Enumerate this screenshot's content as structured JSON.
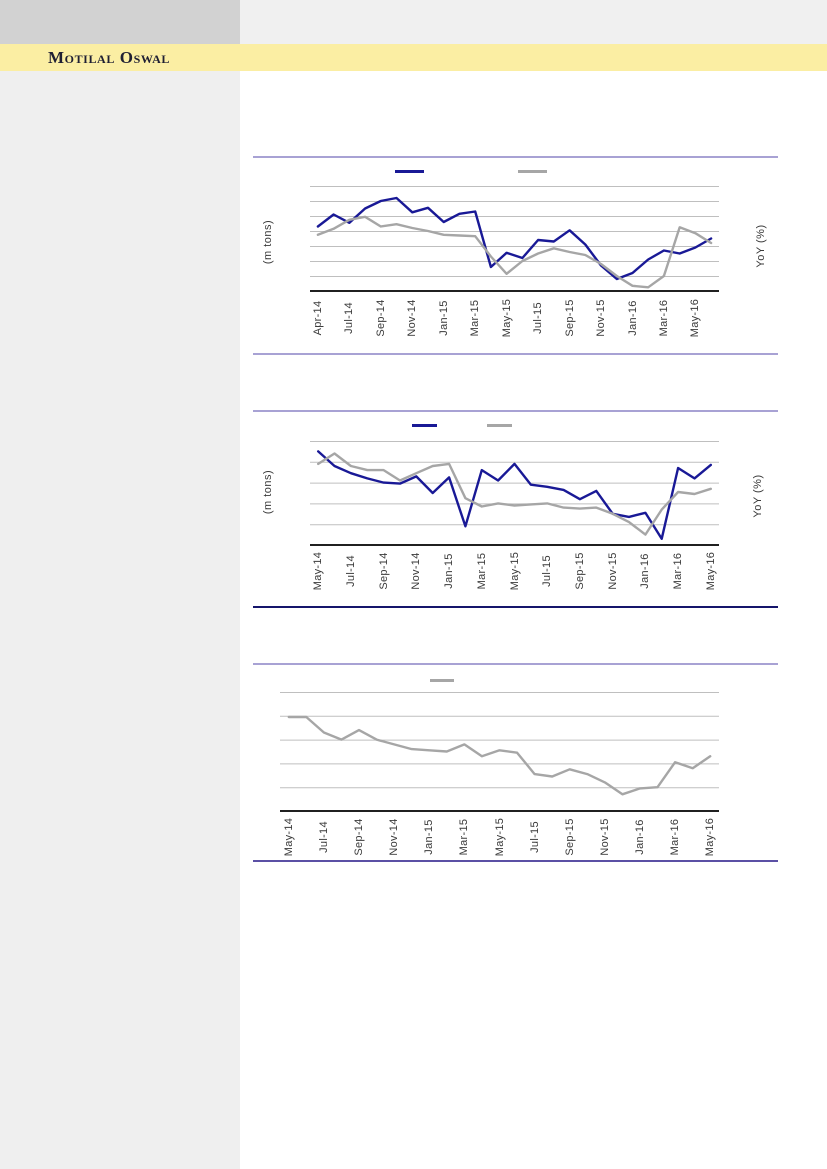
{
  "page": {
    "brand": "Motilal Oswal"
  },
  "colors": {
    "band_yellow": "#FBEEA3",
    "sidebar_gray": "#EFEFEF",
    "sidebar_top_gray": "#D2D2D2",
    "header_strip_gray": "#F0F0F0",
    "brand_text": "#1F1F33",
    "navy_line": "#191996",
    "gray_line": "#A6A6A6",
    "gridline": "#BFBFBF",
    "axis_text": "#3A3A3A",
    "rule_light": "#A8A2D4",
    "rule_navy": "#15156B",
    "rule_purple": "#5B50A5"
  },
  "chart_data": [
    {
      "type": "line",
      "ylabel_left": "(m tons)",
      "ylabel_right": "YoY (%)",
      "y_axis_numeric_labels": "none visible",
      "value_units": "relative gridline units (0 = x-axis, 7 = top gridline)",
      "ylim": [
        0,
        7
      ],
      "grid": "horizontal gridlines on, 7 intervals, black x-axis",
      "legend_position": "top (two unlabeled color swatches)",
      "x_tick_labels": [
        "Apr-14",
        "Jul-14",
        "Sep-14",
        "Nov-14",
        "Jan-15",
        "Mar-15",
        "May-15",
        "Jul-15",
        "Sep-15",
        "Nov-15",
        "Jan-16",
        "Mar-16",
        "May-16"
      ],
      "x": [
        "Apr-14",
        "May-14",
        "Jun-14",
        "Jul-14",
        "Aug-14",
        "Sep-14",
        "Oct-14",
        "Nov-14",
        "Dec-14",
        "Jan-15",
        "Feb-15",
        "Mar-15",
        "Apr-15",
        "May-15",
        "Jun-15",
        "Jul-15",
        "Aug-15",
        "Sep-15",
        "Oct-15",
        "Nov-15",
        "Dec-15",
        "Jan-16",
        "Feb-16",
        "Mar-16",
        "Apr-16",
        "May-16"
      ],
      "series": [
        {
          "name": "(m tons) navy line",
          "color": "#191996",
          "values": [
            4.3,
            5.1,
            4.55,
            5.5,
            6.0,
            6.2,
            5.25,
            5.55,
            4.6,
            5.15,
            5.3,
            1.6,
            2.55,
            2.2,
            3.4,
            3.3,
            4.05,
            3.1,
            1.7,
            0.8,
            1.2,
            2.1,
            2.7,
            2.5,
            2.9,
            3.5
          ]
        },
        {
          "name": "YoY (%) gray line",
          "color": "#A6A6A6",
          "values": [
            3.75,
            4.15,
            4.75,
            4.95,
            4.3,
            4.45,
            4.2,
            4.0,
            3.75,
            3.7,
            3.65,
            2.3,
            1.15,
            2.0,
            2.5,
            2.85,
            2.6,
            2.4,
            1.8,
            1.0,
            0.35,
            0.25,
            1.0,
            4.25,
            3.85,
            3.2
          ]
        }
      ]
    },
    {
      "type": "line",
      "ylabel_left": "(m tons)",
      "ylabel_right": "YoY (%)",
      "y_axis_numeric_labels": "none visible",
      "value_units": "relative gridline units (0 = x-axis, 5 = top gridline)",
      "ylim": [
        0,
        5
      ],
      "grid": "horizontal gridlines on, 5 intervals, black x-axis",
      "legend_position": "top (two unlabeled color swatches)",
      "x_tick_labels": [
        "May-14",
        "Jul-14",
        "Sep-14",
        "Nov-14",
        "Jan-15",
        "Mar-15",
        "May-15",
        "Jul-15",
        "Sep-15",
        "Nov-15",
        "Jan-16",
        "Mar-16",
        "May-16"
      ],
      "x": [
        "May-14",
        "Jun-14",
        "Jul-14",
        "Aug-14",
        "Sep-14",
        "Oct-14",
        "Nov-14",
        "Dec-14",
        "Jan-15",
        "Feb-15",
        "Mar-15",
        "Apr-15",
        "May-15",
        "Jun-15",
        "Jul-15",
        "Aug-15",
        "Sep-15",
        "Oct-15",
        "Nov-15",
        "Dec-15",
        "Jan-16",
        "Feb-16",
        "Mar-16",
        "Apr-16",
        "May-16"
      ],
      "series": [
        {
          "name": "(m tons) navy line",
          "color": "#191996",
          "values": [
            4.5,
            3.8,
            3.45,
            3.2,
            3.0,
            2.95,
            3.3,
            2.5,
            3.25,
            0.9,
            3.6,
            3.1,
            3.9,
            2.9,
            2.8,
            2.65,
            2.2,
            2.6,
            1.5,
            1.35,
            1.55,
            0.3,
            3.7,
            3.2,
            3.85
          ]
        },
        {
          "name": "YoY (%) gray line",
          "color": "#A6A6A6",
          "values": [
            3.9,
            4.4,
            3.8,
            3.6,
            3.6,
            3.1,
            3.45,
            3.8,
            3.9,
            2.25,
            1.85,
            2.0,
            1.9,
            1.95,
            2.0,
            1.8,
            1.75,
            1.8,
            1.5,
            1.1,
            0.5,
            1.7,
            2.55,
            2.45,
            2.7
          ]
        }
      ]
    },
    {
      "type": "line",
      "ylabel_left": "",
      "ylabel_right": "",
      "y_axis_numeric_labels": "none visible",
      "value_units": "relative gridline units (0 = x-axis, 5 = top gridline)",
      "ylim": [
        0,
        5
      ],
      "grid": "horizontal gridlines on, 5 intervals, black x-axis",
      "legend_position": "top (one unlabeled gray swatch)",
      "x_tick_labels": [
        "May-14",
        "Jul-14",
        "Sep-14",
        "Nov-14",
        "Jan-15",
        "Mar-15",
        "May-15",
        "Jul-15",
        "Sep-15",
        "Nov-15",
        "Jan-16",
        "Mar-16",
        "May-16"
      ],
      "x": [
        "May-14",
        "Jun-14",
        "Jul-14",
        "Aug-14",
        "Sep-14",
        "Oct-14",
        "Nov-14",
        "Dec-14",
        "Jan-15",
        "Feb-15",
        "Mar-15",
        "Apr-15",
        "May-15",
        "Jun-15",
        "Jul-15",
        "Aug-15",
        "Sep-15",
        "Oct-15",
        "Nov-15",
        "Dec-15",
        "Jan-16",
        "Feb-16",
        "Mar-16",
        "Apr-16",
        "May-16"
      ],
      "series": [
        {
          "name": "gray line",
          "color": "#A6A6A6",
          "values": [
            3.95,
            3.95,
            3.3,
            3.0,
            3.4,
            3.0,
            2.8,
            2.6,
            2.55,
            2.5,
            2.8,
            2.3,
            2.55,
            2.45,
            1.55,
            1.45,
            1.75,
            1.55,
            1.2,
            0.7,
            0.95,
            1.0,
            2.05,
            1.8,
            2.3
          ]
        }
      ]
    }
  ]
}
